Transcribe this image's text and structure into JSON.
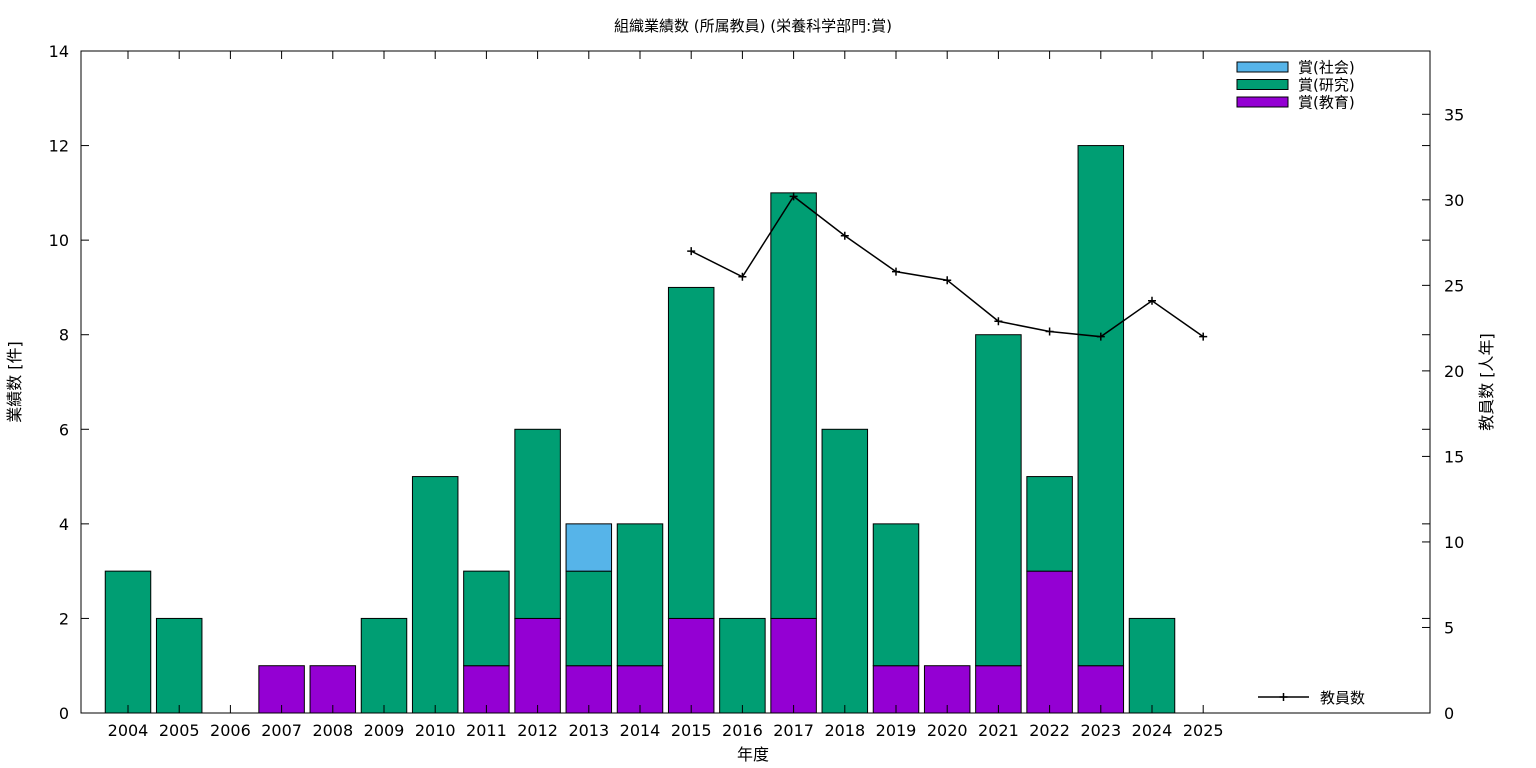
{
  "chart_data": {
    "type": "bar",
    "title": "組織業績数 (所属教員) (栄養科学部門:賞)",
    "xlabel": "年度",
    "ylabel": "業績数 [件]",
    "y2label": "教員数 [人年]",
    "categories": [
      "2004",
      "2005",
      "2006",
      "2007",
      "2008",
      "2009",
      "2010",
      "2011",
      "2012",
      "2013",
      "2014",
      "2015",
      "2016",
      "2017",
      "2018",
      "2019",
      "2020",
      "2021",
      "2022",
      "2023",
      "2024",
      "2025"
    ],
    "stacked": true,
    "ylim": [
      0,
      14
    ],
    "yticks": [
      0,
      2,
      4,
      6,
      8,
      10,
      12,
      14
    ],
    "y2lim": [
      0,
      38.7
    ],
    "y2ticks": [
      0,
      5,
      10,
      15,
      20,
      25,
      30,
      35
    ],
    "grid": false,
    "legend_position": "top-right",
    "series": [
      {
        "name": "賞(教育)",
        "color": "#9400d3",
        "values": [
          0,
          0,
          0,
          1,
          1,
          0,
          0,
          1,
          2,
          1,
          1,
          2,
          0,
          2,
          0,
          1,
          1,
          1,
          3,
          1,
          0,
          0
        ]
      },
      {
        "name": "賞(研究)",
        "color": "#009e73",
        "values": [
          3,
          2,
          0,
          0,
          0,
          2,
          5,
          2,
          4,
          2,
          3,
          7,
          2,
          9,
          6,
          3,
          0,
          7,
          2,
          11,
          2,
          0
        ]
      },
      {
        "name": "賞(社会)",
        "color": "#56b4e9",
        "values": [
          0,
          0,
          0,
          0,
          0,
          0,
          0,
          0,
          0,
          1,
          0,
          0,
          0,
          0,
          0,
          0,
          0,
          0,
          0,
          0,
          0,
          0
        ]
      }
    ],
    "legend_order": [
      "賞(社会)",
      "賞(研究)",
      "賞(教育)"
    ],
    "line_series": {
      "name": "教員数",
      "axis": "y2",
      "color": "#000000",
      "x": [
        "2015",
        "2016",
        "2017",
        "2018",
        "2019",
        "2020",
        "2021",
        "2022",
        "2023",
        "2024",
        "2025"
      ],
      "values": [
        27.0,
        25.5,
        30.2,
        27.9,
        25.8,
        25.3,
        22.9,
        22.3,
        22.0,
        24.1,
        22.0
      ]
    }
  }
}
